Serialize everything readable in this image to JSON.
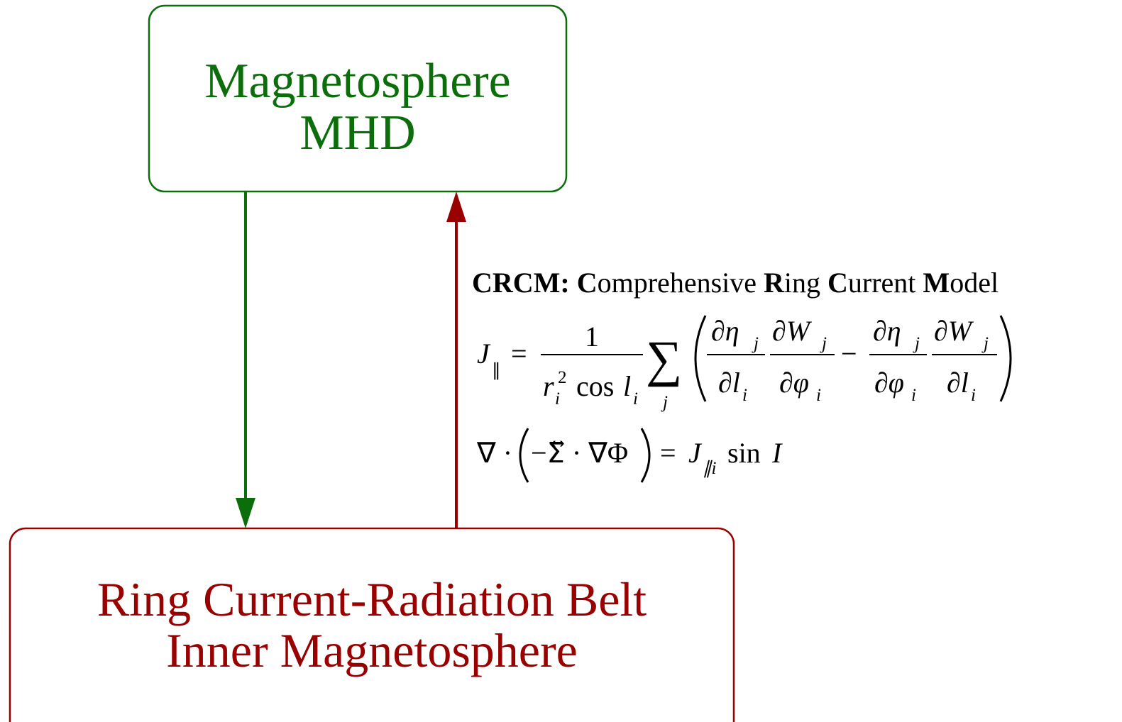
{
  "nodes": [
    {
      "label_lines": [
        "Magnetosphere",
        "MHD"
      ],
      "color": "#0b6e0b"
    },
    {
      "label_lines": [
        "Ring Current-Radiation Belt",
        "Inner Magnetosphere"
      ],
      "color": "#990000"
    }
  ],
  "annotation": {
    "title_parts": [
      {
        "text": "CRCM: ",
        "bold": true
      },
      {
        "text": "C",
        "bold": true
      },
      {
        "text": "omprehensive ",
        "bold": false
      },
      {
        "text": "R",
        "bold": true
      },
      {
        "text": "ing ",
        "bold": false
      },
      {
        "text": "C",
        "bold": true
      },
      {
        "text": "urrent ",
        "bold": false
      },
      {
        "text": "M",
        "bold": true
      },
      {
        "text": "odel",
        "bold": false
      }
    ],
    "equations": [
      {
        "lhs": "J",
        "lhs_sub": "∥",
        "eq": "=",
        "frac_num": "1",
        "frac_den": "r",
        "frac_den_sub": "i",
        "frac_den_sup": "2",
        "frac_den_tail": "cos",
        "frac_den_var": "l",
        "frac_den_var_sub": "i",
        "sum": "∑",
        "sum_sub": "j",
        "minus": "−",
        "terms": [
          {
            "num": "∂η",
            "num_sub": "j",
            "den": "∂l",
            "den_sub": "i"
          },
          {
            "num": "∂W",
            "num_sub": "j",
            "den": "∂φ",
            "den_sub": "i"
          },
          {
            "num": "∂η",
            "num_sub": "j",
            "den": "∂φ",
            "den_sub": "i"
          },
          {
            "num": "∂W",
            "num_sub": "j",
            "den": "∂l",
            "den_sub": "i"
          }
        ]
      },
      {
        "lhs": "∇ ·",
        "inner": "−Σ⃡ · ∇Φ",
        "eq": "=",
        "rhs": "J",
        "rhs_sub": "∥i",
        "rhs_tail": "sin",
        "rhs_var": "I"
      }
    ]
  }
}
